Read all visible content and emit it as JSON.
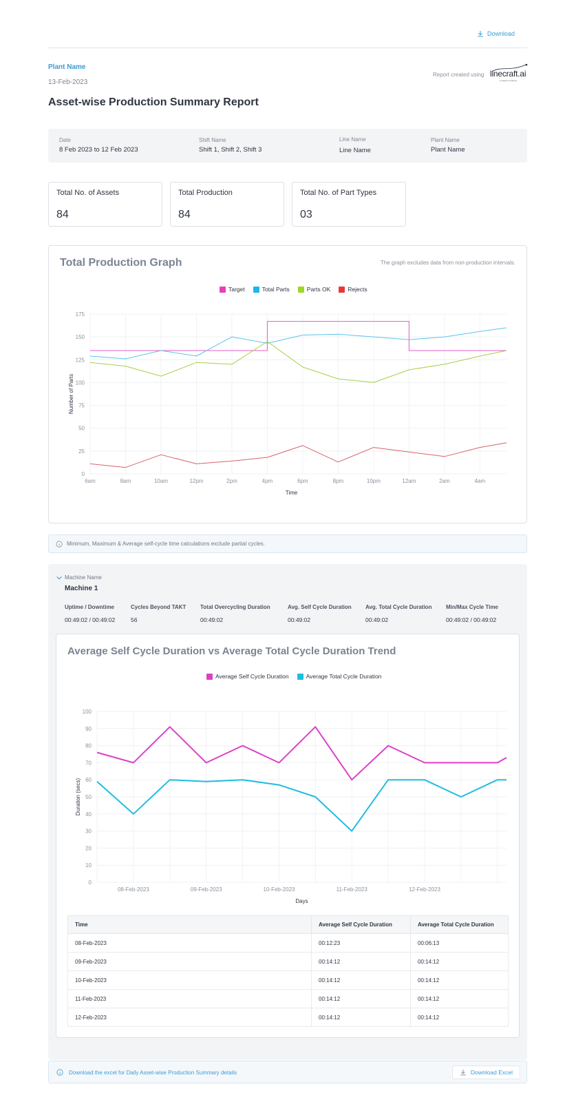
{
  "header": {
    "download_label": "Download",
    "plant_name": "Plant Name",
    "report_date": "13-Feb-2023",
    "title": "Asset-wise Production Summary Report",
    "created_using": "Report created using",
    "logo_text": "linecraft.ai",
    "logo_sub": "a objects company"
  },
  "filters": [
    {
      "label": "Date",
      "value": "8 Feb 2023 to 12 Feb 2023"
    },
    {
      "label": "Shift Name",
      "value": "Shift 1, Shift 2, Shift 3"
    },
    {
      "label": "Line Name",
      "value": "Line Name"
    },
    {
      "label": "Plant Name",
      "value": "Plant Name"
    }
  ],
  "stats": [
    {
      "label": "Total No. of Assets",
      "value": "84"
    },
    {
      "label": "Total Production",
      "value": "84"
    },
    {
      "label": "Total No. of Part Types",
      "value": "03"
    }
  ],
  "production_graph": {
    "title": "Total Production Graph",
    "note": "The graph excludes data from non-production intervals.",
    "legend": [
      {
        "name": "Target",
        "color": "#e83fb8"
      },
      {
        "name": "Total Parts",
        "color": "#1fb6e8"
      },
      {
        "name": "Parts OK",
        "color": "#9fd627"
      },
      {
        "name": "Rejects",
        "color": "#e8393a"
      }
    ]
  },
  "info_note": "Minimum, Maximum & Average self-cycle time calculations exclude partial cycles.",
  "machine": {
    "label": "Machine Name",
    "name": "Machine 1",
    "metrics": [
      {
        "label": "Uptime / Downtime",
        "value": "00:49:02 / 00:49:02"
      },
      {
        "label": "Cycles Beyond TAKT",
        "value": "56"
      },
      {
        "label": "Total Overcycling Duration",
        "value": "00:49:02"
      },
      {
        "label": "Avg. Self Cycle Duration",
        "value": "00:49:02"
      },
      {
        "label": "Avg. Total Cycle Duration",
        "value": "00:49:02"
      },
      {
        "label": "Min/Max Cycle Time",
        "value": "00:49:02 / 00:49:02"
      }
    ]
  },
  "trend_graph": {
    "title": "Average Self Cycle Duration vs Average Total Cycle Duration Trend",
    "legend": [
      {
        "name": "Average Self Cycle Duration",
        "color": "#dd3fc6"
      },
      {
        "name": "Average Total Cycle Duration",
        "color": "#1fbde0"
      }
    ]
  },
  "table": {
    "headers": [
      "Time",
      "Average Self Cycle Duration",
      "Average Total Cycle Duration"
    ],
    "rows": [
      [
        "08-Feb-2023",
        "00:12:23",
        "00:06:13"
      ],
      [
        "09-Feb-2023",
        "00:14:12",
        "00:14:12"
      ],
      [
        "10-Feb-2023",
        "00:14:12",
        "00:14:12"
      ],
      [
        "11-Feb-2023",
        "00:14:12",
        "00:14:12"
      ],
      [
        "12-Feb-2023",
        "00:14:12",
        "00:14:12"
      ]
    ]
  },
  "footer": {
    "text": "Download the excel for Daily Asset-wise Production Summary details",
    "button_label": "Download Excel"
  },
  "chart_data": [
    {
      "type": "line",
      "title": "Total Production Graph",
      "xlabel": "Time",
      "ylabel": "Number of Parts",
      "ylim": [
        0,
        175
      ],
      "yticks": [
        0,
        25,
        50,
        75,
        100,
        125,
        150,
        175
      ],
      "categories": [
        "6am",
        "8am",
        "10am",
        "12pm",
        "2pm",
        "4pm",
        "6pm",
        "8pm",
        "10pm",
        "12am",
        "2am",
        "4am"
      ],
      "x": [
        0,
        1,
        2,
        3,
        4,
        5,
        6,
        7,
        8,
        9,
        10,
        11,
        11.75
      ],
      "series": [
        {
          "name": "Target",
          "color": "#e05cc8",
          "step": true,
          "x": [
            0,
            5,
            5,
            9,
            9,
            11.75
          ],
          "values": [
            135,
            135,
            167,
            167,
            135,
            135
          ]
        },
        {
          "name": "Total Parts",
          "color": "#5cc4ea",
          "values": [
            129,
            126,
            135,
            129,
            150,
            143,
            152,
            153,
            150,
            147,
            150,
            156,
            160
          ]
        },
        {
          "name": "Parts OK",
          "color": "#a6cf46",
          "values": [
            122,
            118,
            107,
            122,
            120,
            145,
            117,
            104,
            100,
            114,
            120,
            129,
            135
          ]
        },
        {
          "name": "Rejects",
          "color": "#d9616a",
          "values": [
            11,
            7,
            21,
            11,
            14,
            18,
            31,
            13,
            29,
            24,
            19,
            29,
            34
          ]
        }
      ]
    },
    {
      "type": "line",
      "title": "Average Self Cycle Duration vs Average Total Cycle Duration Trend",
      "xlabel": "Days",
      "ylabel": "Duration (secs)",
      "ylim": [
        0,
        100
      ],
      "yticks": [
        0,
        10,
        20,
        30,
        40,
        50,
        60,
        70,
        80,
        90,
        100
      ],
      "xtick_labels": [
        {
          "x": 1,
          "label": "08-Feb-2023"
        },
        {
          "x": 3,
          "label": "09-Feb-2023"
        },
        {
          "x": 5,
          "label": "10-Feb-2023"
        },
        {
          "x": 7,
          "label": "11-Feb-2023"
        },
        {
          "x": 9,
          "label": "12-Feb-2023"
        }
      ],
      "x": [
        0,
        1,
        2,
        3,
        4,
        5,
        6,
        7,
        8,
        9,
        10,
        11,
        11.25
      ],
      "series": [
        {
          "name": "Average Self Cycle Duration",
          "color": "#dd3fc6",
          "values": [
            76,
            70,
            91,
            70,
            80,
            70,
            91,
            60,
            80,
            70,
            70,
            70,
            73
          ]
        },
        {
          "name": "Average Total Cycle Duration",
          "color": "#1fbde0",
          "values": [
            59,
            40,
            60,
            59,
            60,
            57,
            50,
            30,
            60,
            60,
            50,
            60,
            60
          ]
        }
      ]
    }
  ]
}
